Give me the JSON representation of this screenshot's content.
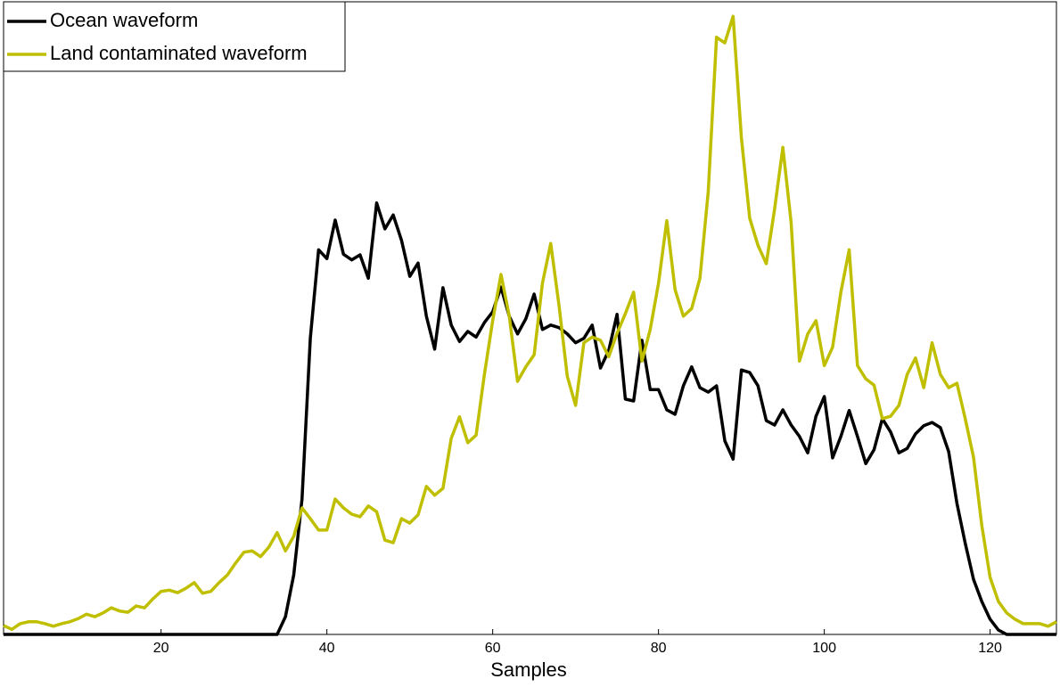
{
  "chart_data": {
    "type": "line",
    "xlabel": "Samples",
    "x": [
      1,
      2,
      3,
      4,
      5,
      6,
      7,
      8,
      9,
      10,
      11,
      12,
      13,
      14,
      15,
      16,
      17,
      18,
      19,
      20,
      21,
      22,
      23,
      24,
      25,
      26,
      27,
      28,
      29,
      30,
      31,
      32,
      33,
      34,
      35,
      36,
      37,
      38,
      39,
      40,
      41,
      42,
      43,
      44,
      45,
      46,
      47,
      48,
      49,
      50,
      51,
      52,
      53,
      54,
      55,
      56,
      57,
      58,
      59,
      60,
      61,
      62,
      63,
      64,
      65,
      66,
      67,
      68,
      69,
      70,
      71,
      72,
      73,
      74,
      75,
      76,
      77,
      78,
      79,
      80,
      81,
      82,
      83,
      84,
      85,
      86,
      87,
      88,
      89,
      90,
      91,
      92,
      93,
      94,
      95,
      96,
      97,
      98,
      99,
      100,
      101,
      102,
      103,
      104,
      105,
      106,
      107,
      108,
      109,
      110,
      111,
      112,
      113,
      114,
      115,
      116,
      117,
      118,
      119,
      120,
      121,
      122,
      123,
      124,
      125,
      126,
      127,
      128
    ],
    "series": [
      {
        "name": "Ocean waveform",
        "color": "#000000",
        "values": [
          0,
          0,
          0,
          0,
          0,
          0,
          0,
          0,
          0,
          0,
          0,
          0,
          0,
          0,
          0,
          0,
          0,
          0,
          0,
          0,
          0,
          0,
          0,
          0,
          0,
          0,
          0,
          0,
          0,
          0,
          0,
          0,
          0,
          0,
          2.8,
          9.4,
          21.4,
          46.8,
          60.8,
          59.4,
          65.5,
          60.1,
          59.2,
          60.0,
          56.3,
          68.2,
          64.1,
          66.3,
          62.3,
          56.6,
          58.7,
          50.3,
          45.1,
          54.8,
          48.9,
          46.3,
          47.9,
          47.0,
          49.3,
          51.0,
          54.9,
          50.3,
          47.5,
          49.9,
          53.8,
          48.2,
          48.9,
          48.5,
          47.5,
          46.1,
          46.8,
          48.9,
          42.1,
          44.9,
          50.6,
          37.2,
          36.9,
          46.5,
          38.7,
          38.7,
          35.5,
          34.8,
          39.3,
          42.3,
          39.0,
          38.3,
          39.3,
          30.6,
          27.7,
          41.8,
          41.4,
          39.3,
          33.8,
          33.1,
          35.5,
          33.1,
          31.3,
          28.7,
          34.5,
          37.6,
          27.9,
          31.3,
          35.4,
          31.3,
          27.0,
          29.2,
          34.1,
          32.0,
          28.7,
          29.4,
          31.7,
          33.0,
          33.5,
          32.7,
          28.9,
          20.7,
          14.4,
          8.7,
          5.2,
          2.4,
          0.7,
          0,
          0,
          0,
          0,
          0,
          0,
          0
        ]
      },
      {
        "name": "Land contaminated waveform",
        "color": "#bfbf00",
        "values": [
          1.4,
          0.8,
          1.7,
          2.0,
          2.0,
          1.7,
          1.3,
          1.7,
          2.0,
          2.5,
          3.2,
          2.8,
          3.4,
          4.2,
          3.7,
          3.5,
          4.5,
          4.2,
          5.6,
          6.8,
          7.0,
          6.6,
          7.3,
          8.2,
          6.5,
          6.8,
          8.2,
          9.4,
          11.3,
          13.0,
          13.2,
          12.3,
          13.8,
          16.1,
          13.2,
          15.5,
          20.0,
          18.3,
          16.5,
          16.5,
          21.4,
          20.0,
          19.0,
          18.6,
          20.3,
          19.4,
          14.9,
          14.5,
          18.3,
          17.6,
          18.9,
          23.4,
          22.0,
          23.1,
          31.0,
          34.4,
          30.3,
          31.5,
          41.1,
          49.6,
          56.9,
          50.3,
          40.0,
          42.3,
          44.2,
          55.5,
          61.8,
          52.0,
          40.8,
          36.2,
          46.1,
          47.0,
          46.5,
          43.9,
          47.6,
          50.7,
          54.1,
          43.2,
          48.2,
          55.5,
          65.4,
          54.5,
          50.3,
          51.5,
          56.3,
          70.0,
          94.4,
          93.5,
          97.7,
          78.5,
          65.8,
          61.5,
          58.6,
          67.2,
          77.0,
          65.1,
          43.2,
          47.5,
          49.6,
          42.5,
          45.4,
          54.1,
          60.8,
          42.5,
          40.4,
          39.4,
          34.1,
          34.5,
          36.2,
          41.1,
          43.7,
          39.0,
          46.1,
          41.1,
          39.0,
          39.7,
          34.1,
          28.0,
          17.2,
          9.0,
          5.2,
          3.4,
          2.4,
          1.7,
          1.7,
          1.7,
          1.3,
          2.0
        ]
      }
    ],
    "xlim": [
      1,
      128
    ],
    "ylim": [
      0,
      100
    ],
    "xticks": [
      20,
      40,
      60,
      80,
      100,
      120
    ],
    "legend": "upper left"
  }
}
